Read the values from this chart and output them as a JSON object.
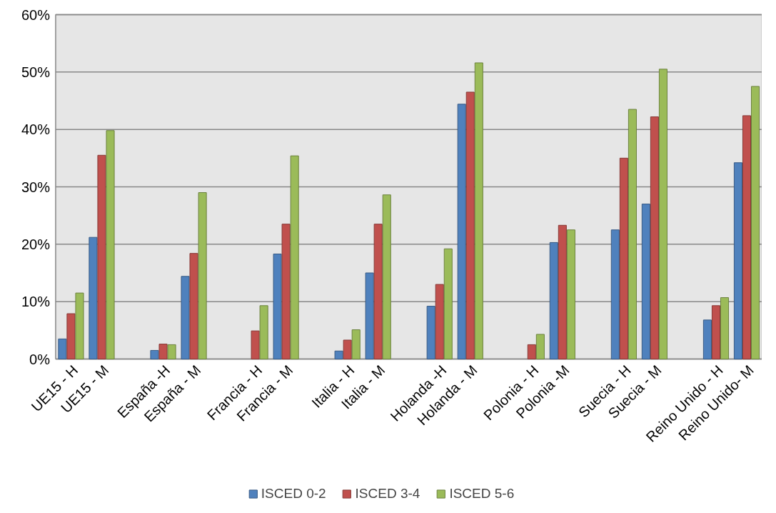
{
  "chart_data": {
    "type": "bar",
    "categories": [
      "UE15 - H",
      "UE15 - M",
      null,
      "España -H",
      "España - M",
      null,
      "Francia - H",
      "Francia - M",
      null,
      "Italia - H",
      "Italia - M",
      null,
      "Holanda -H",
      "Holanda - M",
      null,
      "Polonia - H",
      "Polonia -M",
      null,
      "Suecia - H",
      "Suecia - M",
      null,
      "Reino Unido - H",
      "Reino Unido- M"
    ],
    "series": [
      {
        "name": "ISCED 0-2",
        "color": "#4f81bd",
        "values": [
          3.5,
          21.2,
          null,
          1.5,
          14.4,
          null,
          null,
          18.3,
          null,
          1.4,
          15.0,
          null,
          9.2,
          44.4,
          null,
          null,
          20.3,
          null,
          22.5,
          27.0,
          null,
          6.8,
          34.2
        ]
      },
      {
        "name": "ISCED 3-4",
        "color": "#c0504d",
        "values": [
          7.9,
          35.5,
          null,
          2.6,
          18.4,
          null,
          4.9,
          23.5,
          null,
          3.3,
          23.5,
          null,
          13.0,
          46.5,
          null,
          2.5,
          23.3,
          null,
          35.0,
          42.2,
          null,
          9.3,
          42.4
        ]
      },
      {
        "name": "ISCED 5-6",
        "color": "#9bbb59",
        "values": [
          11.5,
          39.8,
          null,
          2.5,
          29.0,
          null,
          9.3,
          35.4,
          null,
          5.1,
          28.6,
          null,
          19.2,
          51.6,
          null,
          4.3,
          22.5,
          null,
          43.5,
          50.5,
          null,
          10.7,
          47.5
        ]
      }
    ],
    "ylim": [
      0,
      60
    ],
    "yticks": [
      {
        "value": 0,
        "label": "0%"
      },
      {
        "value": 10,
        "label": "10%"
      },
      {
        "value": 20,
        "label": "20%"
      },
      {
        "value": 30,
        "label": "30%"
      },
      {
        "value": 40,
        "label": "40%"
      },
      {
        "value": 50,
        "label": "50%"
      },
      {
        "value": 60,
        "label": "60%"
      }
    ],
    "grid": "y",
    "legend": "bottom"
  }
}
